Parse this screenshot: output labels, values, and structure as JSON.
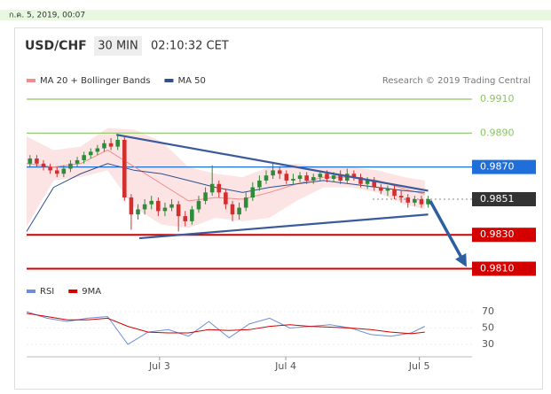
{
  "timestamp": "ก.ค. 5, 2019, 00:07",
  "header": {
    "symbol": "USD/CHF",
    "interval": "30 MIN",
    "time": "02:10:32 CET"
  },
  "credit": "Research © 2019 Trading Central",
  "chart_data": [
    {
      "type": "candlestick",
      "up_color": "#2e8b3a",
      "down_color": "#d32f2f",
      "xlim": [
        0,
        66
      ],
      "ylim": [
        0.9804,
        0.9916
      ],
      "open": [
        0.9872,
        0.9875,
        0.9872,
        0.987,
        0.9868,
        0.9866,
        0.9869,
        0.9872,
        0.9874,
        0.9877,
        0.9879,
        0.9881,
        0.9884,
        0.9882,
        0.9886,
        0.9852,
        0.9842,
        0.9845,
        0.9848,
        0.985,
        0.9844,
        0.9846,
        0.9848,
        0.9841,
        0.9838,
        0.9845,
        0.985,
        0.9855,
        0.986,
        0.9855,
        0.9848,
        0.9842,
        0.9846,
        0.9852,
        0.9858,
        0.9862,
        0.9865,
        0.9868,
        0.9866,
        0.9862,
        0.9863,
        0.9865,
        0.9862,
        0.9864,
        0.9866,
        0.9863,
        0.9865,
        0.9862,
        0.9866,
        0.9864,
        0.986,
        0.9862,
        0.9858,
        0.9856,
        0.9857,
        0.9853,
        0.9852,
        0.9849,
        0.9851,
        0.9848
      ],
      "high": [
        0.9877,
        0.9877,
        0.9874,
        0.9872,
        0.987,
        0.9871,
        0.9874,
        0.9876,
        0.9879,
        0.9881,
        0.9883,
        0.9886,
        0.9887,
        0.9889,
        0.9888,
        0.9854,
        0.9848,
        0.9851,
        0.9853,
        0.9852,
        0.9849,
        0.9851,
        0.985,
        0.9844,
        0.9847,
        0.9853,
        0.9858,
        0.9871,
        0.9862,
        0.9857,
        0.985,
        0.9849,
        0.9855,
        0.9861,
        0.9865,
        0.9868,
        0.9872,
        0.987,
        0.9868,
        0.9866,
        0.9867,
        0.9867,
        0.9866,
        0.9868,
        0.9868,
        0.9867,
        0.9868,
        0.9869,
        0.9868,
        0.9866,
        0.9864,
        0.9864,
        0.986,
        0.9859,
        0.9859,
        0.9856,
        0.9854,
        0.9853,
        0.9853,
        0.9853
      ],
      "low": [
        0.987,
        0.987,
        0.9868,
        0.9866,
        0.9864,
        0.9864,
        0.9867,
        0.987,
        0.9872,
        0.9875,
        0.9877,
        0.9879,
        0.988,
        0.988,
        0.985,
        0.9833,
        0.9839,
        0.9842,
        0.9845,
        0.9841,
        0.9841,
        0.9844,
        0.9832,
        0.9835,
        0.9836,
        0.9843,
        0.9848,
        0.9853,
        0.9852,
        0.9845,
        0.9838,
        0.9839,
        0.9844,
        0.985,
        0.9856,
        0.986,
        0.9863,
        0.9863,
        0.986,
        0.986,
        0.9861,
        0.986,
        0.986,
        0.9862,
        0.9861,
        0.9861,
        0.986,
        0.986,
        0.9862,
        0.9858,
        0.9857,
        0.9856,
        0.9854,
        0.9853,
        0.9851,
        0.9849,
        0.9846,
        0.9847,
        0.9846,
        0.9846
      ],
      "close": [
        0.9875,
        0.9872,
        0.987,
        0.9868,
        0.9866,
        0.9869,
        0.9872,
        0.9874,
        0.9877,
        0.9879,
        0.9881,
        0.9884,
        0.9882,
        0.9886,
        0.9852,
        0.9842,
        0.9845,
        0.9848,
        0.985,
        0.9844,
        0.9846,
        0.9848,
        0.9841,
        0.9838,
        0.9845,
        0.985,
        0.9855,
        0.986,
        0.9855,
        0.9848,
        0.9842,
        0.9846,
        0.9852,
        0.9858,
        0.9862,
        0.9865,
        0.9868,
        0.9866,
        0.9862,
        0.9863,
        0.9865,
        0.9862,
        0.9864,
        0.9866,
        0.9863,
        0.9865,
        0.9862,
        0.9866,
        0.9864,
        0.986,
        0.9862,
        0.9858,
        0.9856,
        0.9857,
        0.9853,
        0.9852,
        0.9849,
        0.9851,
        0.9848,
        0.9851
      ],
      "overlays": [
        {
          "name": "MA 20 + Bollinger Bands",
          "color": "#f28b8b",
          "band_color": "#fbd9d9",
          "x": [
            0,
            4,
            8,
            12,
            16,
            20,
            24,
            28,
            32,
            36,
            40,
            44,
            48,
            52,
            56,
            59
          ],
          "values": [
            0.9872,
            0.987,
            0.9872,
            0.988,
            0.987,
            0.986,
            0.985,
            0.9852,
            0.9851,
            0.9855,
            0.986,
            0.9864,
            0.9864,
            0.9862,
            0.9857,
            0.9854
          ],
          "upper": [
            0.9888,
            0.988,
            0.9882,
            0.9893,
            0.9892,
            0.9885,
            0.987,
            0.9866,
            0.9864,
            0.987,
            0.9872,
            0.987,
            0.987,
            0.9868,
            0.9864,
            0.9862
          ],
          "lower": [
            0.9835,
            0.9862,
            0.9864,
            0.9868,
            0.9846,
            0.9836,
            0.9834,
            0.984,
            0.9838,
            0.984,
            0.985,
            0.9858,
            0.9858,
            0.9855,
            0.9848,
            0.9845
          ]
        },
        {
          "name": "MA 50",
          "color": "#2f4f8f",
          "x": [
            0,
            4,
            8,
            12,
            16,
            20,
            24,
            28,
            32,
            36,
            40,
            44,
            48,
            52,
            56,
            59
          ],
          "values": [
            0.9832,
            0.9858,
            0.9866,
            0.9872,
            0.9868,
            0.9866,
            0.9862,
            0.9858,
            0.9855,
            0.9858,
            0.986,
            0.9862,
            0.986,
            0.9858,
            0.9856,
            0.9855
          ]
        }
      ],
      "trendlines": [
        {
          "color": "#3b5a9a",
          "x": [
            13.3,
            59.5
          ],
          "values": [
            0.9889,
            0.9856
          ]
        },
        {
          "color": "#3b5a9a",
          "x": [
            16.7,
            59.5
          ],
          "values": [
            0.9828,
            0.9842
          ]
        }
      ],
      "arrow": {
        "color": "#2d5fa0",
        "x": [
          59.8,
          65.2
        ],
        "values": [
          0.985,
          0.9811
        ]
      },
      "levels": [
        {
          "value": 0.991,
          "label": "0.9910",
          "color": "#8cc665",
          "boxed": false,
          "dotted": false
        },
        {
          "value": 0.989,
          "label": "0.9890",
          "color": "#8cc665",
          "boxed": false,
          "dotted": false
        },
        {
          "value": 0.987,
          "label": "0.9870",
          "color": "#1e6fd9",
          "boxed": true,
          "dotted": false
        },
        {
          "value": 0.9851,
          "label": "0.9851",
          "color": "#333333",
          "boxed": true,
          "dotted": true
        },
        {
          "value": 0.983,
          "label": "0.9830",
          "color": "#d40000",
          "boxed": true,
          "dotted": false
        },
        {
          "value": 0.981,
          "label": "0.9810",
          "color": "#d40000",
          "boxed": true,
          "dotted": false
        }
      ]
    },
    {
      "type": "line",
      "xlim": [
        0,
        66
      ],
      "ylim": [
        18,
        83
      ],
      "yticks": [
        70,
        50,
        30
      ],
      "grid": true,
      "xticks": [
        {
          "value": 19.7,
          "label": "Jul 3"
        },
        {
          "value": 38.4,
          "label": "Jul 4"
        },
        {
          "value": 58.2,
          "label": "Jul 5"
        }
      ],
      "x": [
        0,
        3,
        6,
        9,
        12,
        15,
        18,
        21,
        24,
        27,
        30,
        33,
        36,
        39,
        42,
        45,
        48,
        51,
        54,
        57,
        59
      ],
      "series": [
        {
          "name": "RSI",
          "color": "#6a8fd8",
          "values": [
            70,
            62,
            58,
            62,
            64,
            30,
            45,
            48,
            40,
            58,
            38,
            55,
            62,
            50,
            52,
            54,
            50,
            42,
            40,
            44,
            52
          ]
        },
        {
          "name": "9MA",
          "color": "#d40000",
          "values": [
            68,
            64,
            60,
            60,
            62,
            52,
            45,
            44,
            44,
            48,
            47,
            48,
            52,
            54,
            52,
            51,
            50,
            48,
            45,
            43,
            45
          ]
        }
      ]
    }
  ]
}
